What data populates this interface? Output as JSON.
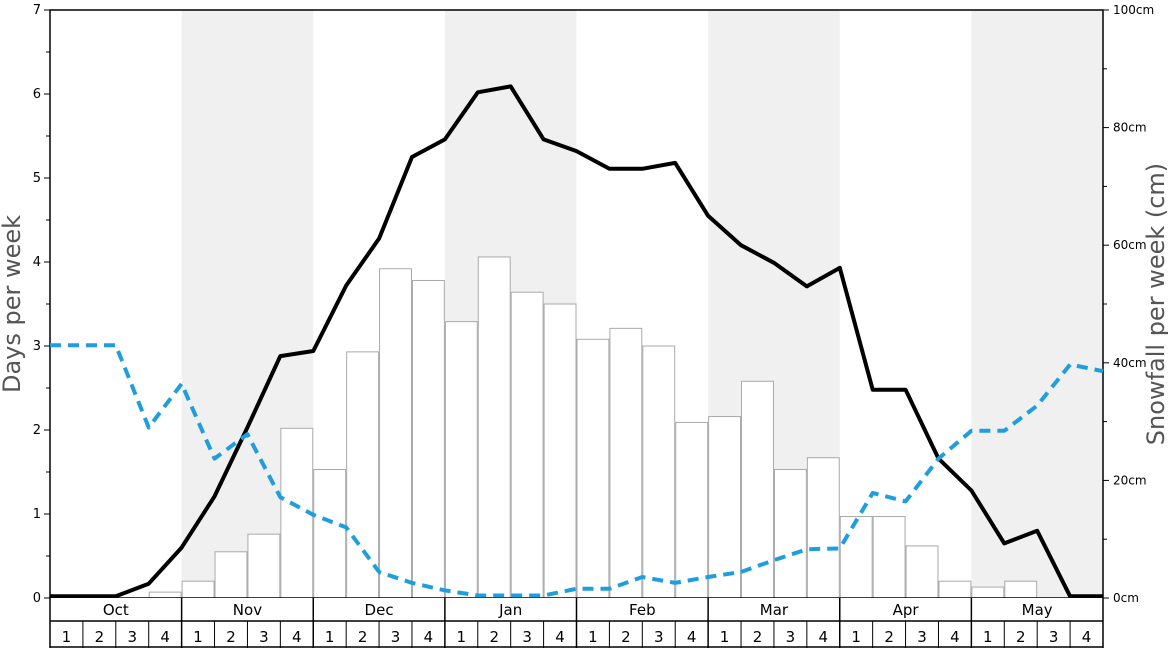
{
  "chart_data": {
    "type": "bar",
    "months": [
      "Oct",
      "Nov",
      "Dec",
      "Jan",
      "Feb",
      "Mar",
      "Apr",
      "May"
    ],
    "weeks_per_month": [
      "1",
      "2",
      "3",
      "4"
    ],
    "ylabel_left": "Days per week",
    "ylabel_right": "Snowfall per week (cm)",
    "ylim_left": [
      0,
      7
    ],
    "ylim_right": [
      0,
      100
    ],
    "yticks_left": [
      "0",
      "1",
      "2",
      "3",
      "4",
      "5",
      "6",
      "7"
    ],
    "yticks_right": [
      "0cm",
      "20cm",
      "40cm",
      "60cm",
      "80cm",
      "100cm"
    ],
    "grid": false,
    "shaded_months": [
      "Nov",
      "Jan",
      "Mar",
      "May"
    ],
    "series": [
      {
        "type": "bar",
        "axis": "left",
        "values": [
          0,
          0,
          0,
          0.07,
          0.2,
          0.55,
          0.76,
          2.02,
          1.53,
          2.93,
          3.92,
          3.78,
          3.29,
          4.06,
          3.64,
          3.5,
          3.08,
          3.21,
          3.0,
          2.09,
          2.16,
          2.58,
          1.53,
          1.67,
          0.97,
          0.97,
          0.62,
          0.2,
          0.13,
          0.2,
          0,
          0
        ]
      },
      {
        "type": "line",
        "axis": "left",
        "style": "solid",
        "color": "#000000",
        "values": [
          0.02,
          0.02,
          0.02,
          0.17,
          0.6,
          1.21,
          2.03,
          2.88,
          2.94,
          3.72,
          4.28,
          5.25,
          5.46,
          6.02,
          6.09,
          5.46,
          5.32,
          5.11,
          5.11,
          5.18,
          4.55,
          4.2,
          3.99,
          3.71,
          3.93,
          2.48,
          2.48,
          1.66,
          1.28,
          0.65,
          0.8,
          0.02,
          0.02
        ]
      },
      {
        "type": "line",
        "axis": "left",
        "style": "dashed",
        "color": "#1e9ede",
        "values": [
          3.01,
          3.01,
          3.01,
          2.03,
          2.55,
          1.66,
          1.95,
          1.2,
          0.99,
          0.84,
          0.31,
          0.18,
          0.09,
          0.03,
          0.03,
          0.03,
          0.11,
          0.11,
          0.25,
          0.18,
          0.25,
          0.31,
          0.45,
          0.58,
          0.59,
          1.25,
          1.15,
          1.66,
          1.99,
          1.99,
          2.29,
          2.78,
          2.7
        ]
      }
    ]
  }
}
